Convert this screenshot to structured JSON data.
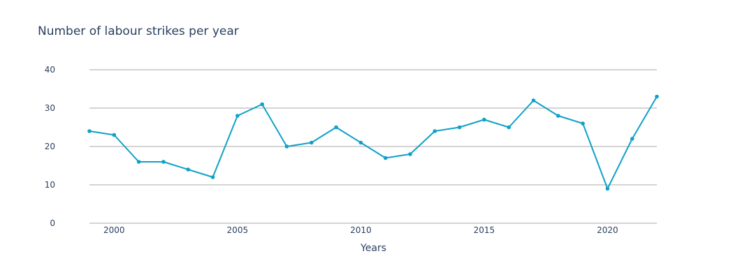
{
  "chart_data": {
    "type": "line",
    "title": "Number of labour strikes per year",
    "xlabel": "Years",
    "ylabel": "",
    "x": [
      1999,
      2000,
      2001,
      2002,
      2003,
      2004,
      2005,
      2006,
      2007,
      2008,
      2009,
      2010,
      2011,
      2012,
      2013,
      2014,
      2015,
      2016,
      2017,
      2018,
      2019,
      2020,
      2021,
      2022
    ],
    "series": [
      {
        "values": [
          24,
          23,
          16,
          16,
          14,
          12,
          28,
          31,
          20,
          21,
          25,
          21,
          17,
          18,
          24,
          25,
          27,
          25,
          32,
          28,
          26,
          9,
          22,
          33
        ],
        "color": "#0fa1c8"
      }
    ],
    "xlim": [
      1999,
      2022
    ],
    "ylim": [
      0,
      40
    ],
    "x_ticks": [
      2000,
      2005,
      2010,
      2015,
      2020
    ],
    "y_ticks": [
      0,
      10,
      20,
      30,
      40
    ],
    "x_tick_labels": [
      "2000",
      "2005",
      "2010",
      "2015",
      "2020"
    ],
    "y_tick_labels": [
      "0",
      "10",
      "20",
      "30",
      "40"
    ],
    "grid": true,
    "legend": "none",
    "colors": {
      "line": "#0fa1c8",
      "grid": "#a8a8a8",
      "text": "#2a3f5f"
    }
  }
}
